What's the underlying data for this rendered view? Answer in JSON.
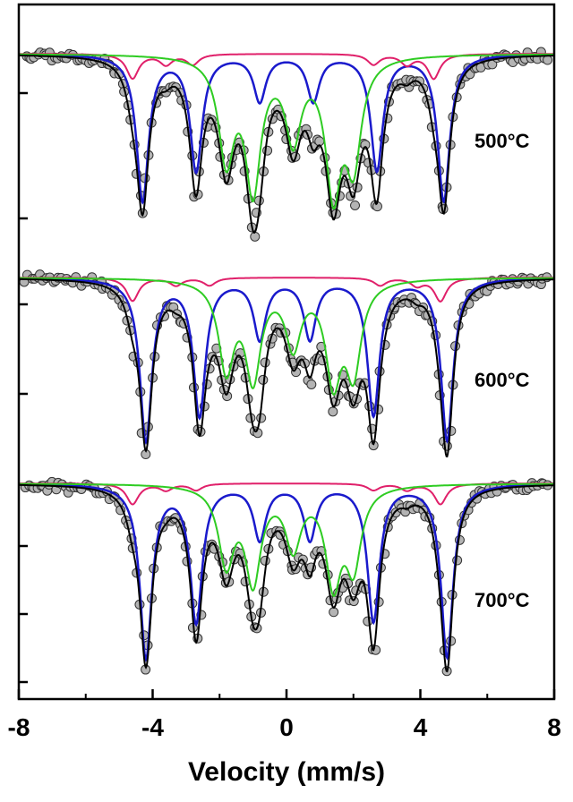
{
  "chart_data": {
    "type": "line",
    "xlabel": "Velocity (mm/s)",
    "xlim": [
      -8,
      8
    ],
    "x_ticks": [
      -8,
      -4,
      0,
      4,
      8
    ],
    "x_tick_labels": [
      "-8",
      "-4",
      "0",
      "4",
      "8"
    ],
    "ylabel": "",
    "grid": false,
    "legend": "none",
    "panel_labels": [
      "500°C",
      "600°C",
      "700°C"
    ],
    "colors": {
      "data_points": "#b4b4b4",
      "total_fit": "#000000",
      "sextet_blue": "#1a1acc",
      "sextet_magenta": "#e0206a",
      "component_green": "#2ecc22"
    },
    "series": [
      {
        "temperature": "500°C",
        "components": [
          {
            "color": "blue",
            "type": "sextet",
            "positions": [
              -4.3,
              -2.7,
              -0.8,
              0.8,
              2.7,
              4.7
            ],
            "depths": [
              0.95,
              0.75,
              0.3,
              0.3,
              0.75,
              0.95
            ]
          },
          {
            "color": "magenta",
            "type": "sextet",
            "positions": [
              -4.6,
              -3.6,
              -2.8,
              2.6,
              3.6,
              4.4
            ],
            "depths": [
              0.35,
              0.15,
              0.15,
              0.15,
              0.15,
              0.35
            ]
          },
          {
            "color": "green",
            "type": "doublet-set",
            "positions": [
              -1.8,
              -1.0,
              0.2,
              1.4,
              2.0
            ],
            "depths": [
              0.7,
              0.9,
              0.55,
              0.9,
              0.7
            ]
          }
        ]
      },
      {
        "temperature": "600°C",
        "components": [
          {
            "color": "blue",
            "type": "sextet",
            "positions": [
              -4.2,
              -2.6,
              -0.8,
              0.7,
              2.6,
              4.8
            ],
            "depths": [
              0.95,
              0.8,
              0.35,
              0.35,
              0.8,
              0.95
            ]
          },
          {
            "color": "magenta",
            "type": "sextet",
            "positions": [
              -4.6,
              -3.3,
              -2.3,
              2.8,
              3.9,
              4.6
            ],
            "depths": [
              0.3,
              0.1,
              0.1,
              0.1,
              0.1,
              0.3
            ]
          },
          {
            "color": "green",
            "type": "doublet-set",
            "positions": [
              -1.8,
              -1.0,
              0.2,
              1.4,
              2.0
            ],
            "depths": [
              0.55,
              0.6,
              0.4,
              0.6,
              0.55
            ]
          }
        ]
      },
      {
        "temperature": "700°C",
        "components": [
          {
            "color": "blue",
            "type": "sextet",
            "positions": [
              -4.2,
              -2.7,
              -0.8,
              0.7,
              2.6,
              4.8
            ],
            "depths": [
              0.95,
              0.75,
              0.3,
              0.3,
              0.75,
              0.95
            ]
          },
          {
            "color": "magenta",
            "type": "sextet",
            "positions": [
              -4.6,
              -3.6,
              -2.7,
              2.6,
              3.6,
              4.6
            ],
            "depths": [
              0.25,
              0.08,
              0.08,
              0.08,
              0.08,
              0.25
            ]
          },
          {
            "color": "green",
            "type": "doublet-set",
            "positions": [
              -1.8,
              -1.0,
              0.2,
              1.4,
              2.0
            ],
            "depths": [
              0.45,
              0.55,
              0.35,
              0.55,
              0.45
            ]
          }
        ]
      }
    ]
  }
}
